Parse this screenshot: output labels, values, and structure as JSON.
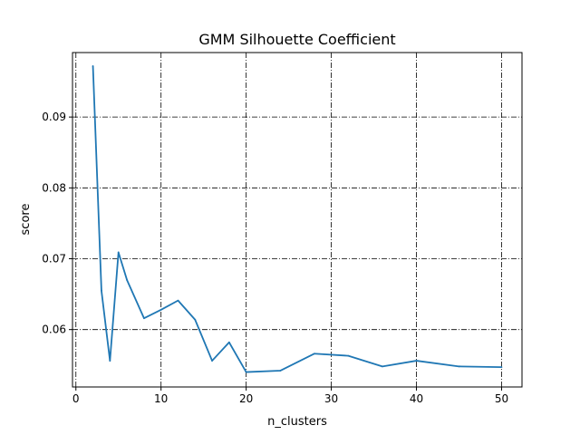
{
  "chart_data": {
    "type": "line",
    "title": "GMM Silhouette Coefficient",
    "xlabel": "n_clusters",
    "ylabel": "score",
    "xlim": [
      -0.4,
      52.4
    ],
    "ylim": [
      0.0519,
      0.0991
    ],
    "x_ticks": [
      0,
      10,
      20,
      30,
      40,
      50
    ],
    "x_tick_labels": [
      "0",
      "10",
      "20",
      "30",
      "40",
      "50"
    ],
    "y_ticks": [
      0.06,
      0.07,
      0.08,
      0.09
    ],
    "y_tick_labels": [
      "0.06",
      "0.07",
      "0.08",
      "0.09"
    ],
    "grid": true,
    "grid_style": "dashdot",
    "series": [
      {
        "color": "#1f77b4",
        "x": [
          2,
          3,
          4,
          5,
          6,
          8,
          10,
          12,
          14,
          16,
          18,
          20,
          24,
          28,
          32,
          36,
          40,
          45,
          50
        ],
        "values": [
          0.0972,
          0.0655,
          0.0556,
          0.0709,
          0.067,
          0.0616,
          0.0628,
          0.0641,
          0.0614,
          0.0556,
          0.0582,
          0.054,
          0.0542,
          0.0566,
          0.0563,
          0.0548,
          0.0556,
          0.0548,
          0.0547
        ]
      }
    ]
  }
}
